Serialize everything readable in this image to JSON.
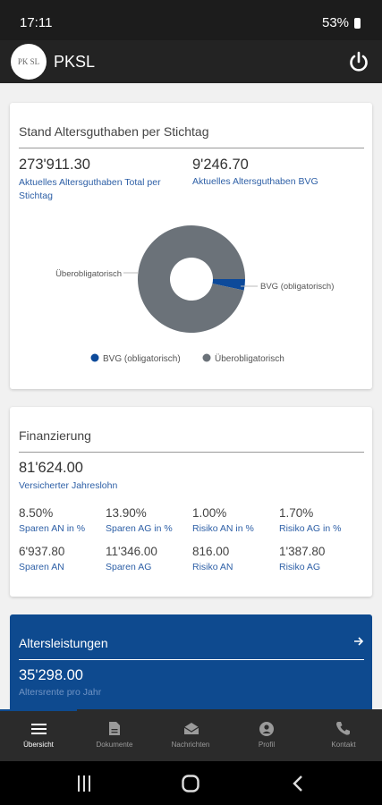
{
  "status_bar": {
    "time": "17:11",
    "battery": "53%"
  },
  "app_bar": {
    "logo": "PK SL",
    "title": "PKSL"
  },
  "balance_card": {
    "title": "Stand Altersguthaben per Stichtag",
    "items": [
      {
        "value": "273'911.30",
        "label": "Aktuelles Altersguthaben Total per Stichtag"
      },
      {
        "value": "9'246.70",
        "label": "Aktuelles Altersguthaben BVG"
      }
    ],
    "chart": {
      "type": "pie",
      "categories": [
        "BVG (obligatorisch)",
        "Überobligatorisch"
      ],
      "values": [
        9246.7,
        264664.6
      ],
      "colors": [
        "#0d4a9a",
        "#6b7279"
      ]
    }
  },
  "financing_card": {
    "title": "Finanzierung",
    "salary": {
      "value": "81'624.00",
      "label": "Versicherter Jahreslohn"
    },
    "rates": [
      {
        "value": "8.50%",
        "label": "Sparen AN in %"
      },
      {
        "value": "13.90%",
        "label": "Sparen AG in %"
      },
      {
        "value": "1.00%",
        "label": "Risiko AN in %"
      },
      {
        "value": "1.70%",
        "label": "Risiko AG in %"
      }
    ],
    "amounts": [
      {
        "value": "6'937.80",
        "label": "Sparen AN"
      },
      {
        "value": "11'346.00",
        "label": "Sparen AG"
      },
      {
        "value": "816.00",
        "label": "Risiko AN"
      },
      {
        "value": "1'387.80",
        "label": "Risiko AG"
      }
    ]
  },
  "benefits_card": {
    "title": "Altersleistungen",
    "value": "35'298.00",
    "label": "Altersrente pro Jahr"
  },
  "bottom_nav": [
    "Übersicht",
    "Dokumente",
    "Nachrichten",
    "Profil",
    "Kontakt"
  ]
}
